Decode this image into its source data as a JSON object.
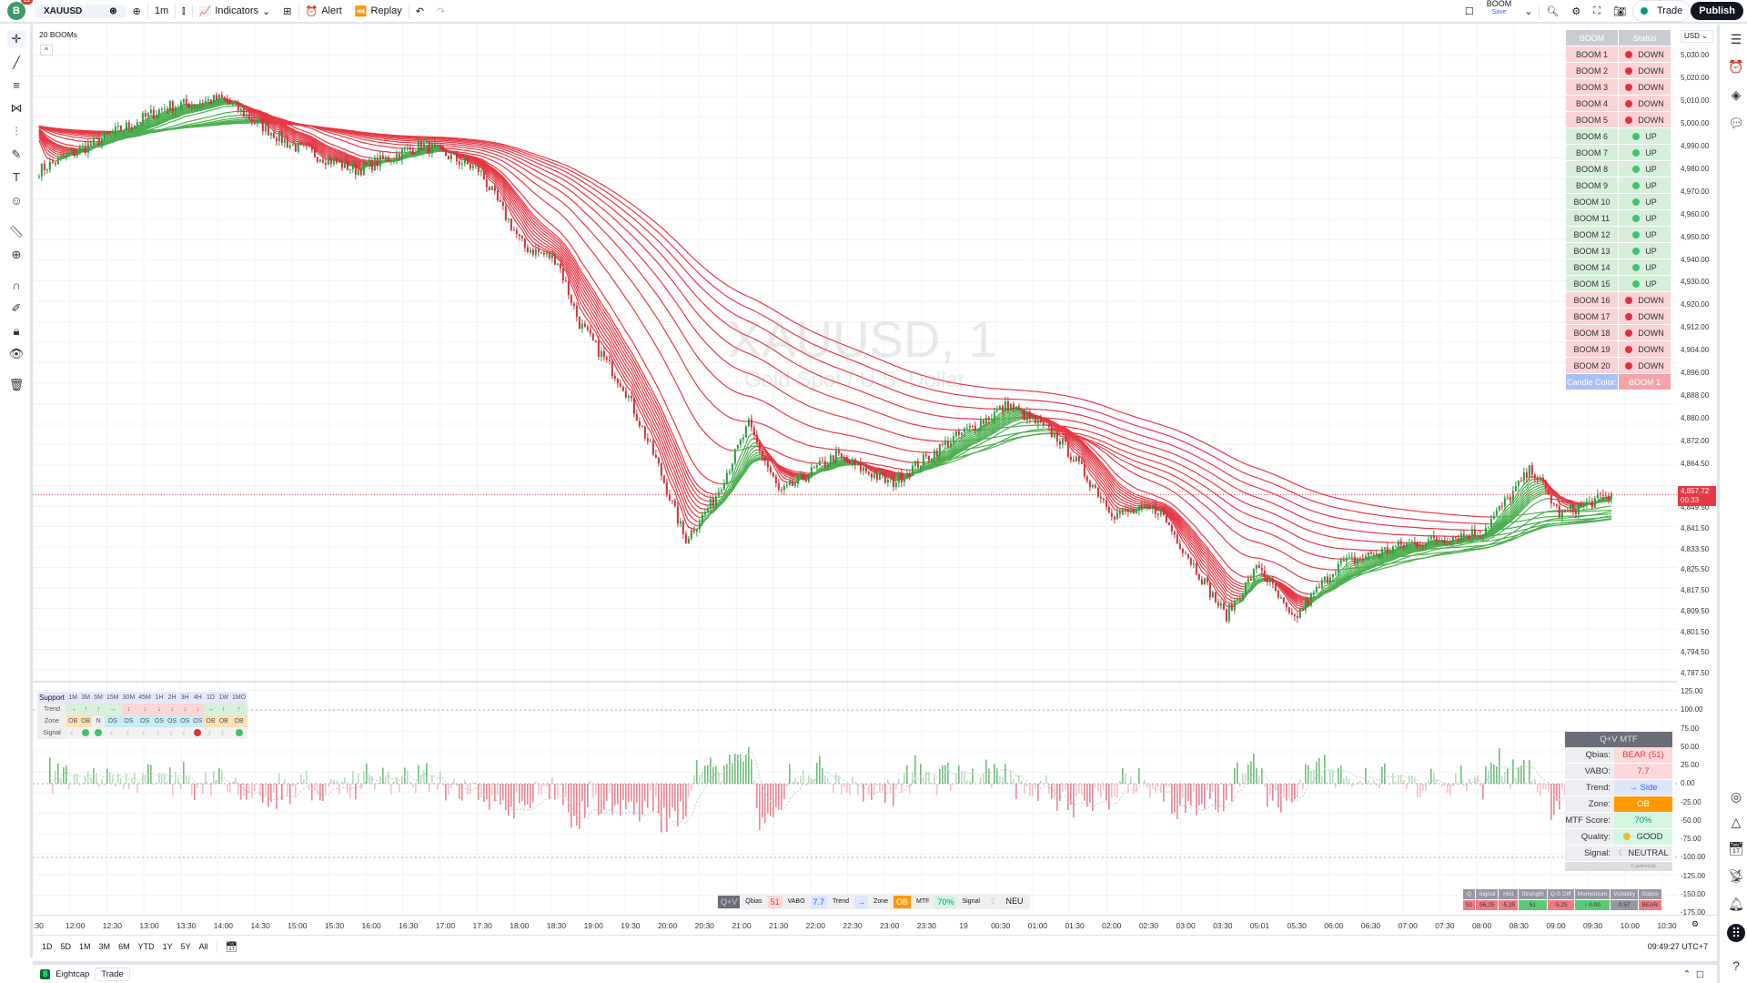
{
  "topbar": {
    "avatar_letter": "B",
    "avatar_badge": "11",
    "symbol": "XAUUSD",
    "interval": "1m",
    "indicators": "Indicators",
    "alert": "Alert",
    "replay": "Replay",
    "layout_name": "BOOM",
    "layout_status": "Save",
    "trade": "Trade",
    "publish": "Publish"
  },
  "chart": {
    "indicator_title": "20 BOOMs",
    "watermark_symbol": "XAUUSD, 1",
    "watermark_desc": "Gold Spot / U.S. Dollar",
    "currency": "USD",
    "price_labels": [
      "5,030.00",
      "5,020.00",
      "5,010.00",
      "5,000.00",
      "4,990.00",
      "4,980.00",
      "4,970.00",
      "4,960.00",
      "4,950.00",
      "4,940.00",
      "4,930.00",
      "4,920.00",
      "4,912.00",
      "4,904.00",
      "4,896.00",
      "4,888.00",
      "4,880.00",
      "4,872.00",
      "4,864.50",
      "4,849.50",
      "4,841.50",
      "4,833.50",
      "4,825.50",
      "4,817.50",
      "4,809.50",
      "4,801.50",
      "4,794.50",
      "4,787.50"
    ],
    "last_price": "4,857.72",
    "countdown": "00:33",
    "up_color": "#4caf50",
    "down_color": "#e53945"
  },
  "boom_table": {
    "header": [
      "BOOM",
      "Status"
    ],
    "rows": [
      {
        "name": "BOOM 1",
        "status": "DOWN"
      },
      {
        "name": "BOOM 2",
        "status": "DOWN"
      },
      {
        "name": "BOOM 3",
        "status": "DOWN"
      },
      {
        "name": "BOOM 4",
        "status": "DOWN"
      },
      {
        "name": "BOOM 5",
        "status": "DOWN"
      },
      {
        "name": "BOOM 6",
        "status": "UP"
      },
      {
        "name": "BOOM 7",
        "status": "UP"
      },
      {
        "name": "BOOM 8",
        "status": "UP"
      },
      {
        "name": "BOOM 9",
        "status": "UP"
      },
      {
        "name": "BOOM 10",
        "status": "UP"
      },
      {
        "name": "BOOM 11",
        "status": "UP"
      },
      {
        "name": "BOOM 12",
        "status": "UP"
      },
      {
        "name": "BOOM 13",
        "status": "UP"
      },
      {
        "name": "BOOM 14",
        "status": "UP"
      },
      {
        "name": "BOOM 15",
        "status": "UP"
      },
      {
        "name": "BOOM 16",
        "status": "DOWN"
      },
      {
        "name": "BOOM 17",
        "status": "DOWN"
      },
      {
        "name": "BOOM 18",
        "status": "DOWN"
      },
      {
        "name": "BOOM 19",
        "status": "DOWN"
      },
      {
        "name": "BOOM 20",
        "status": "DOWN"
      }
    ],
    "footer_label": "Candle Color:",
    "footer_value": "BOOM 1"
  },
  "support_table": {
    "title": "Support",
    "timeframes": [
      "1M",
      "3M",
      "5M",
      "15M",
      "30M",
      "45M",
      "1H",
      "2H",
      "3H",
      "4H",
      "1D",
      "1W",
      "1MO"
    ],
    "trend_label": "Trend",
    "trend": [
      "→",
      "↑",
      "↑",
      "→",
      "↓",
      "↓",
      "↓",
      "↓",
      "↓",
      "↓",
      "→",
      "↑",
      "↑"
    ],
    "zone_label": "Zone",
    "zone": [
      "OB",
      "OB",
      "N",
      "OS",
      "OS",
      "OS",
      "OS",
      "OS",
      "OS",
      "OS",
      "OB",
      "OB",
      "OB"
    ],
    "signal_label": "Signal",
    "signal": [
      "neutral",
      "bull",
      "bull",
      "neutral",
      "neutral",
      "neutral",
      "neutral",
      "neutral",
      "neutral",
      "bear",
      "neutral",
      "neutral",
      "bull"
    ]
  },
  "qv_table": {
    "title": "Q+V MTF",
    "rows": [
      {
        "label": "Qbias:",
        "value": "BEAR (51)"
      },
      {
        "label": "VABO:",
        "value": "7.7"
      },
      {
        "label": "Trend:",
        "value": "→ Side"
      },
      {
        "label": "Zone:",
        "value": "OB"
      },
      {
        "label": "MTF Score:",
        "value": "70%"
      },
      {
        "label": "Quality:",
        "value": "GOOD"
      },
      {
        "label": "Signal:",
        "value": "NEUTRAL"
      }
    ],
    "credit": "© gelmeslab"
  },
  "strip": {
    "title": "Q+V",
    "qbias_label": "Qbias",
    "qbias": "51",
    "vabo_label": "VABO",
    "vabo": "7.7",
    "trend_label": "Trend",
    "trend": "→",
    "zone_label": "Zone",
    "zone": "OB",
    "mtf_label": "MTF",
    "mtf": "70%",
    "signal_label": "Signal",
    "signal": "NEU"
  },
  "stats_table": {
    "headers": [
      "Q",
      "Signal",
      "Hist",
      "Strength",
      "Q-S Diff",
      "Momentum",
      "Volatility",
      "Status"
    ],
    "values": [
      "51",
      "56.25",
      "-5.25",
      "51",
      "-5.25",
      "↑ 0.00",
      "0.57",
      "BEAR"
    ]
  },
  "osc_labels": [
    "125.00",
    "100.00",
    "75.00",
    "50.00",
    "25.00",
    "0.00",
    "-25.00",
    "-50.00",
    "-75.00",
    "-100.00",
    "-125.00",
    "-150.00",
    "-175.00"
  ],
  "time_labels": [
    ":30",
    "12:00",
    "12:30",
    "13:00",
    "13:30",
    "14:00",
    "14:30",
    "15:00",
    "15:30",
    "16:00",
    "16:30",
    "17:00",
    "17:30",
    "18:00",
    "18:30",
    "19:00",
    "19:30",
    "20:00",
    "20:30",
    "21:00",
    "21:30",
    "22:00",
    "22:30",
    "23:00",
    "23:30",
    "19",
    "00:30",
    "01:00",
    "01:30",
    "02:00",
    "02:30",
    "03:00",
    "03:30",
    "05:01",
    "05:30",
    "06:00",
    "06:30",
    "07:00",
    "07:30",
    "08:00",
    "08:30",
    "09:00",
    "09:30",
    "10:00",
    "10:30"
  ],
  "range_buttons": [
    "1D",
    "5D",
    "1M",
    "3M",
    "6M",
    "YTD",
    "1Y",
    "5Y",
    "All"
  ],
  "clock": "09:49:27 UTC+7",
  "bottom": {
    "broker": "Eightcap",
    "trade": "Trade"
  }
}
